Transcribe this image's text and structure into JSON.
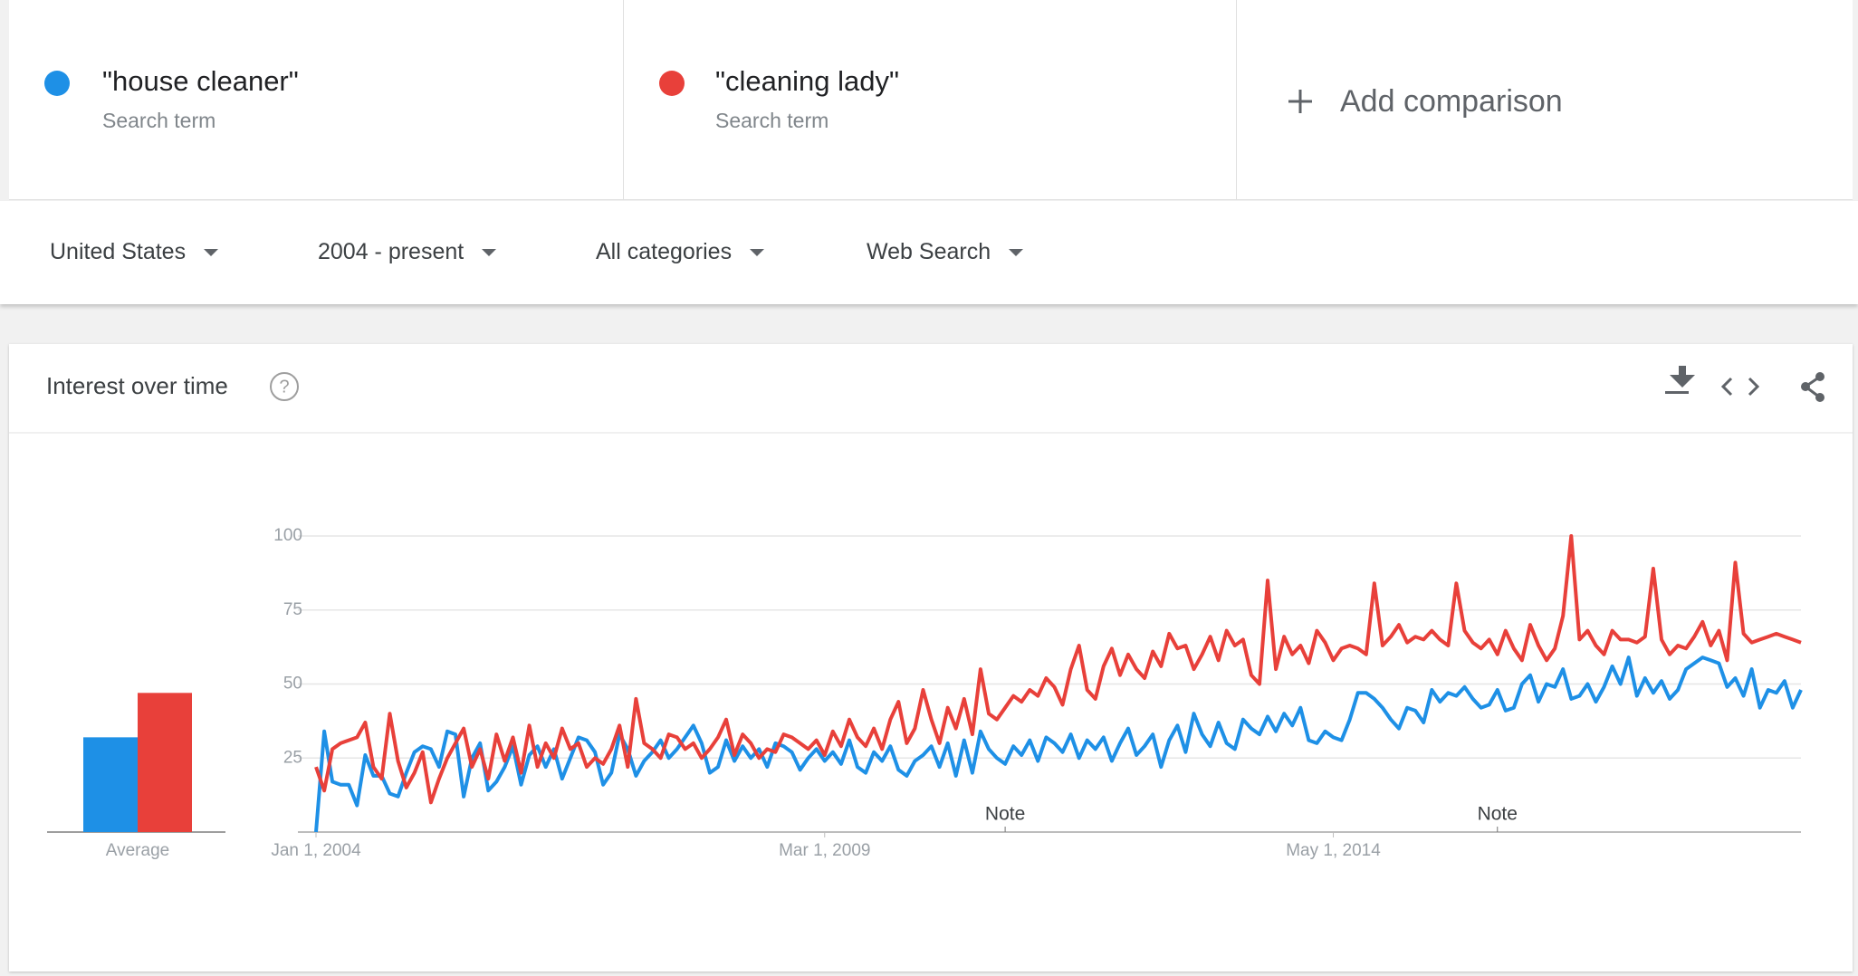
{
  "search_terms": [
    {
      "kind": "Search term"
    },
    {
      "kind": "Search term"
    }
  ],
  "add_comparison": "Add comparison",
  "filters": [
    "United States",
    "2004 - present",
    "All categories",
    "Web Search"
  ],
  "chart_data": {
    "type": "line",
    "title": "Interest over time",
    "series": [
      {
        "name": "\"house cleaner\"",
        "color": "#1e90e6",
        "values": [
          0,
          34,
          17,
          16,
          16,
          9,
          26,
          19,
          19,
          13,
          12,
          20,
          27,
          29,
          28,
          22,
          34,
          33,
          12,
          25,
          30,
          14,
          17,
          22,
          29,
          16,
          26,
          29,
          22,
          28,
          18,
          25,
          32,
          31,
          27,
          16,
          20,
          33,
          28,
          19,
          24,
          27,
          31,
          25,
          28,
          32,
          36,
          30,
          20,
          22,
          31,
          24,
          29,
          25,
          28,
          22,
          30,
          29,
          27,
          21,
          25,
          28,
          24,
          27,
          23,
          31,
          22,
          20,
          27,
          24,
          29,
          21,
          19,
          24,
          26,
          29,
          22,
          30,
          19,
          31,
          20,
          34,
          28,
          25,
          23,
          29,
          26,
          31,
          24,
          32,
          30,
          27,
          33,
          25,
          31,
          28,
          32,
          24,
          30,
          35,
          26,
          29,
          33,
          22,
          31,
          36,
          27,
          40,
          33,
          29,
          37,
          30,
          28,
          38,
          35,
          33,
          39,
          34,
          40,
          36,
          42,
          31,
          30,
          34,
          32,
          31,
          38,
          47,
          47,
          45,
          42,
          38,
          35,
          42,
          41,
          37,
          48,
          44,
          47,
          46,
          49,
          45,
          42,
          43,
          48,
          41,
          42,
          50,
          53,
          44,
          50,
          49,
          55,
          45,
          46,
          50,
          44,
          49,
          56,
          50,
          59,
          46,
          52,
          47,
          51,
          45,
          48,
          55,
          57,
          59,
          58,
          57,
          49,
          52,
          46,
          55,
          42,
          48,
          47,
          51,
          42,
          48
        ]
      },
      {
        "name": "\"cleaning lady\"",
        "color": "#e8403a",
        "values": [
          22,
          14,
          28,
          30,
          31,
          32,
          37,
          22,
          18,
          40,
          24,
          15,
          20,
          27,
          10,
          18,
          25,
          30,
          35,
          22,
          28,
          18,
          33,
          24,
          32,
          20,
          36,
          22,
          30,
          25,
          35,
          28,
          30,
          22,
          25,
          23,
          28,
          36,
          22,
          45,
          30,
          28,
          25,
          33,
          32,
          28,
          30,
          25,
          28,
          32,
          38,
          26,
          33,
          30,
          25,
          28,
          27,
          33,
          32,
          30,
          28,
          31,
          26,
          34,
          29,
          38,
          32,
          29,
          35,
          28,
          38,
          44,
          30,
          35,
          48,
          38,
          30,
          42,
          35,
          45,
          33,
          55,
          40,
          38,
          42,
          46,
          44,
          48,
          46,
          52,
          49,
          43,
          55,
          63,
          48,
          45,
          56,
          62,
          53,
          60,
          55,
          52,
          61,
          56,
          67,
          62,
          63,
          55,
          60,
          66,
          58,
          68,
          63,
          65,
          53,
          50,
          85,
          55,
          66,
          60,
          63,
          57,
          68,
          64,
          58,
          62,
          63,
          62,
          60,
          84,
          63,
          66,
          70,
          64,
          66,
          65,
          68,
          65,
          63,
          84,
          68,
          64,
          62,
          65,
          60,
          68,
          62,
          58,
          70,
          63,
          58,
          62,
          73,
          100,
          65,
          68,
          63,
          60,
          68,
          65,
          65,
          64,
          66,
          89,
          65,
          60,
          63,
          62,
          66,
          71,
          63,
          68,
          58,
          91,
          67,
          64,
          65,
          66,
          67,
          66,
          65,
          64
        ]
      }
    ],
    "xlim": [
      0,
      181
    ],
    "xticks": [
      {
        "value": 0,
        "label": "Jan 1, 2004"
      },
      {
        "value": 62,
        "label": "Mar 1, 2009"
      },
      {
        "value": 124,
        "label": "May 1, 2014"
      }
    ],
    "ylim": [
      0,
      100
    ],
    "yticks": [
      25,
      50,
      75,
      100
    ],
    "grid": true,
    "annotations": [
      {
        "x": 84,
        "label": "Note"
      },
      {
        "x": 144,
        "label": "Note"
      }
    ],
    "averages": {
      "label": "Average",
      "values": [
        32,
        47
      ]
    }
  }
}
